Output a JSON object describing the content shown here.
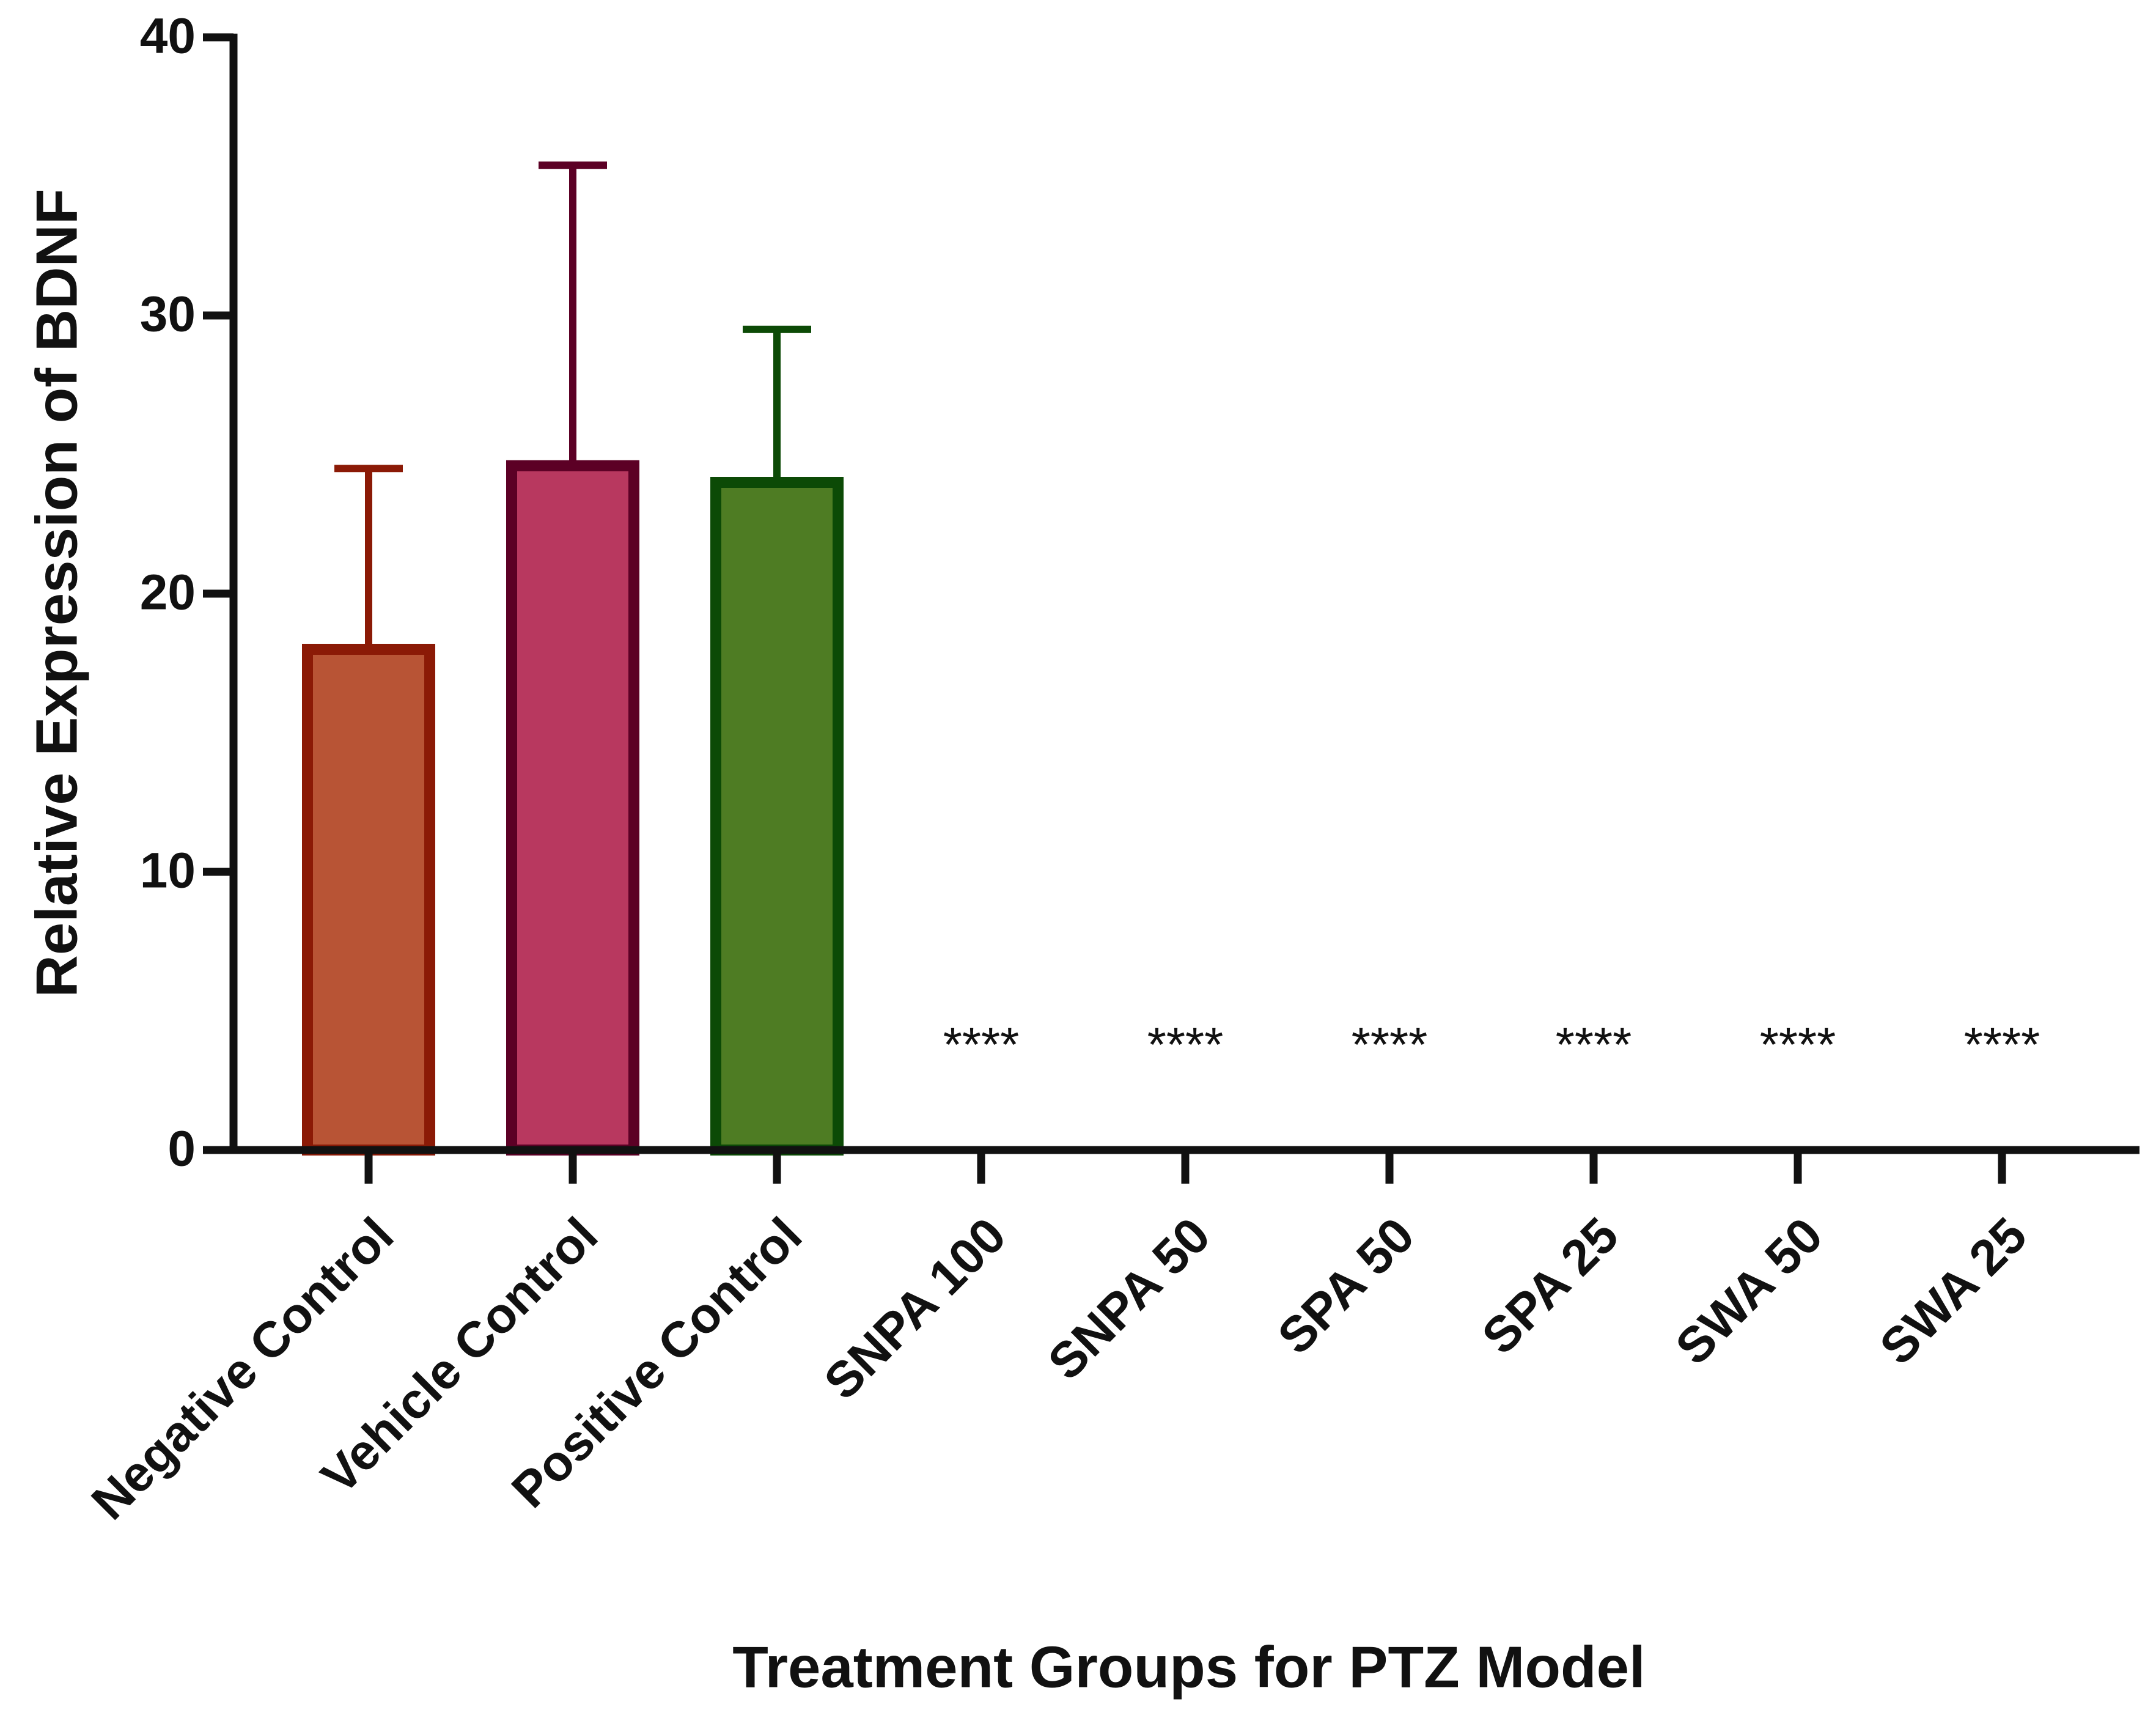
{
  "chart_data": {
    "type": "bar",
    "x_label": "Treatment Groups for PTZ Model",
    "y_label": "Relative Expression of BDNF",
    "categories": [
      "Negative Control",
      "Vehicle Control",
      "Positive Control",
      "SNPA 100",
      "SNPA 50",
      "SPA 50",
      "SPA 25",
      "SWA 50",
      "SWA 25"
    ],
    "values": [
      18,
      24.6,
      24,
      0,
      0,
      0,
      0,
      0,
      0
    ],
    "errors": [
      6.5,
      10.8,
      5.5,
      null,
      null,
      null,
      null,
      null,
      null
    ],
    "annotations": [
      null,
      null,
      null,
      "****",
      "****",
      "****",
      "****",
      "****",
      "****"
    ],
    "colors": [
      "#b85435",
      "#b8385f",
      "#4e7c23",
      "#b85435",
      "#b85435",
      "#b85435",
      "#b85435",
      "#b85435",
      "#b85435"
    ],
    "edge_colors": [
      "#8b1a06",
      "#5c0025",
      "#0c4a06",
      "#000000",
      "#000000",
      "#000000",
      "#000000",
      "#000000",
      "#000000"
    ],
    "ylim": [
      0,
      40
    ],
    "yticks": [
      0,
      10,
      20,
      30,
      40
    ],
    "grid": false
  }
}
